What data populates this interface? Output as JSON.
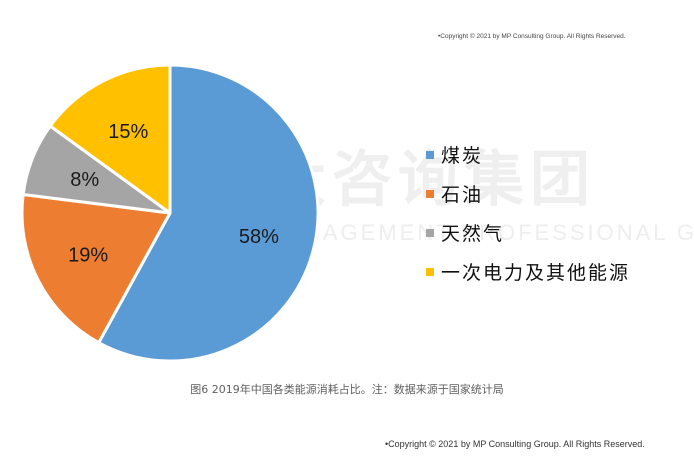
{
  "copyright_top": "•Copyright © 2021 by MP Consulting Group. All Rights Reserved.",
  "copyright_bottom": "•Copyright © 2021 by MP Consulting Group. All Rights Reserved.",
  "caption": "图6  2019年中国各类能源消耗占比。注：数据来源于国家统计局",
  "watermark": {
    "cn": "中大咨询集团",
    "en": "MANAGEMENT PROFESSIONAL GROUP"
  },
  "chart_data": {
    "type": "pie",
    "start_angle_deg": 90,
    "direction": "clockwise",
    "slices": [
      {
        "label": "煤炭",
        "value": 58,
        "display": "58%",
        "color": "#5b9bd5"
      },
      {
        "label": "石油",
        "value": 19,
        "display": "19%",
        "color": "#ed7d31"
      },
      {
        "label": "天然气",
        "value": 8,
        "display": "8%",
        "color": "#a5a5a5"
      },
      {
        "label": "一次电力及其他能源",
        "value": 15,
        "display": "15%",
        "color": "#ffc000"
      }
    ],
    "legend_position": "right"
  }
}
